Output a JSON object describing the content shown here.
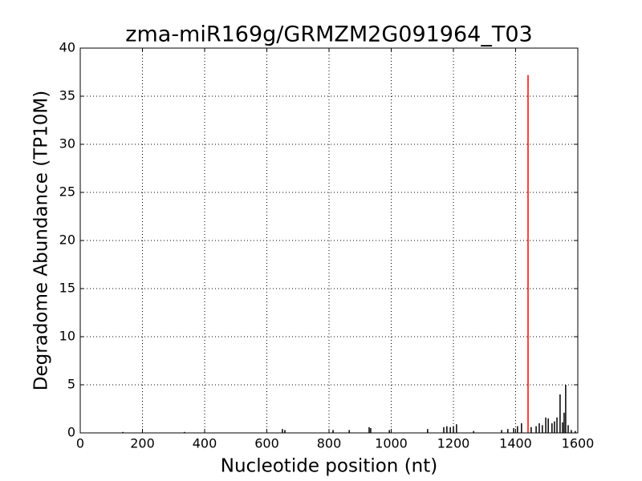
{
  "chart_data": {
    "type": "stem",
    "title": "zma-miR169g/GRMZM2G091964_T03",
    "xlabel": "Nucleotide position (nt)",
    "ylabel": "Degradome Abundance (TP10M)",
    "xlim": [
      0,
      1600
    ],
    "xticks": [
      0,
      200,
      400,
      600,
      800,
      1000,
      1200,
      1400,
      1600
    ],
    "ylim": [
      0,
      40
    ],
    "yticks": [
      0,
      5,
      10,
      15,
      20,
      25,
      30,
      35,
      40
    ],
    "grid": true,
    "series": [
      {
        "color": "#000000",
        "x": [
          137,
          335,
          650,
          658,
          813,
          865,
          929,
          934,
          994,
          1117,
          1169,
          1179,
          1190,
          1200,
          1210,
          1265,
          1355,
          1375,
          1394,
          1406,
          1419,
          1450,
          1466,
          1476,
          1486,
          1497,
          1505,
          1517,
          1525,
          1533,
          1543,
          1551,
          1556,
          1561,
          1569,
          1579,
          1592
        ],
        "values": [
          0.1,
          0.1,
          0.4,
          0.3,
          0.3,
          0.3,
          0.6,
          0.5,
          0.3,
          0.4,
          0.6,
          0.7,
          0.6,
          0.7,
          0.9,
          0.2,
          0.3,
          0.4,
          0.5,
          0.7,
          1.0,
          0.6,
          0.7,
          1.0,
          0.8,
          1.6,
          1.5,
          1.0,
          1.2,
          1.6,
          4.0,
          1.1,
          2.1,
          5.0,
          0.8,
          0.3,
          0.2
        ]
      },
      {
        "color": "#ff0000",
        "x": [
          1440
        ],
        "values": [
          37.2
        ]
      }
    ]
  }
}
